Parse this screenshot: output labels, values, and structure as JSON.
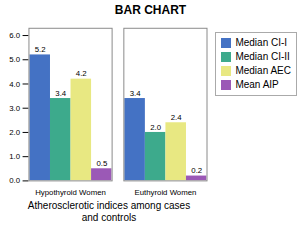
{
  "chart_data": {
    "type": "bar",
    "title": "BAR CHART",
    "subtitle": "Atherosclerotic indices among cases\nand controls",
    "categories": [
      "Hypothyroid Women",
      "Euthyroid Women"
    ],
    "series": [
      {
        "name": "Median CI-I",
        "color": "#4472C4",
        "values": [
          5.2,
          3.4
        ]
      },
      {
        "name": "Median CI-II",
        "color": "#3DAA8C",
        "values": [
          3.4,
          2.0
        ],
        "value_labels": [
          "3.4",
          "2.0"
        ]
      },
      {
        "name": "Median AEC",
        "color": "#E8E882",
        "values": [
          4.2,
          2.4
        ]
      },
      {
        "name": "Mean AIP",
        "color": "#9B59B6",
        "values": [
          0.5,
          0.2
        ]
      }
    ],
    "ylim": [
      0,
      6.3
    ],
    "yticks": [
      0,
      1,
      2,
      3,
      4,
      5,
      6
    ],
    "grid": false,
    "legend": "right",
    "data_labels": true
  }
}
